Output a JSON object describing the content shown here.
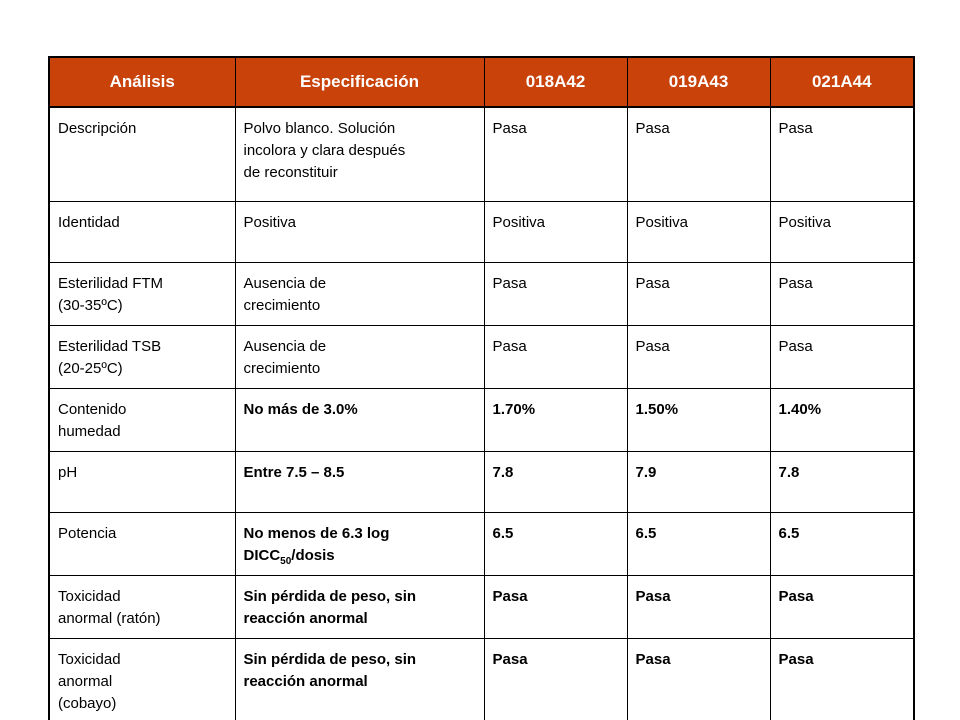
{
  "table": {
    "headers": [
      "Análisis",
      "Especificación",
      "018A42",
      "019A43",
      "021A44"
    ],
    "rows": [
      {
        "analysis": [
          "Descripción"
        ],
        "specification": [
          "Polvo blanco. Solución",
          "incolora y clara después",
          "de reconstituir"
        ],
        "values": [
          "Pasa",
          "Pasa",
          "Pasa"
        ]
      },
      {
        "analysis": [
          "Identidad"
        ],
        "specification": [
          "Positiva"
        ],
        "values": [
          "Positiva",
          "Positiva",
          "Positiva"
        ]
      },
      {
        "analysis": [
          "Esterilidad FTM",
          "(30-35ºC)"
        ],
        "specification": [
          "Ausencia de",
          "crecimiento"
        ],
        "values": [
          "Pasa",
          "Pasa",
          "Pasa"
        ]
      },
      {
        "analysis": [
          "Esterilidad TSB",
          "(20-25ºC)"
        ],
        "specification": [
          "Ausencia de",
          "crecimiento"
        ],
        "values": [
          "Pasa",
          "Pasa",
          "Pasa"
        ]
      },
      {
        "analysis": [
          "Contenido",
          "humedad"
        ],
        "specification": [
          "No más de 3.0%"
        ],
        "values": [
          "1.70%",
          "1.50%",
          "1.40%"
        ]
      },
      {
        "analysis": [
          "pH"
        ],
        "specification": [
          "Entre 7.5 – 8.5"
        ],
        "values": [
          "7.8",
          "7.9",
          "7.8"
        ]
      },
      {
        "analysis": [
          "Potencia"
        ],
        "specification_line1": "No menos de 6.3 log",
        "specification_line2_main": "DICC",
        "specification_line2_sub": "50",
        "specification_line2_tail": "/dosis",
        "values": [
          "6.5",
          "6.5",
          "6.5"
        ]
      },
      {
        "analysis": [
          "Toxicidad",
          "anormal (ratón)"
        ],
        "specification": [
          "Sin pérdida de peso, sin",
          "reacción anormal"
        ],
        "values": [
          "Pasa",
          "Pasa",
          "Pasa"
        ]
      },
      {
        "analysis": [
          "Toxicidad",
          "anormal",
          "(cobayo)"
        ],
        "specification": [
          "Sin pérdida de peso, sin",
          "reacción anormal"
        ],
        "values": [
          "Pasa",
          "Pasa",
          "Pasa"
        ]
      }
    ]
  },
  "colors": {
    "header_background": "#c8420a",
    "header_text": "#ffffff",
    "border": "#000000"
  }
}
